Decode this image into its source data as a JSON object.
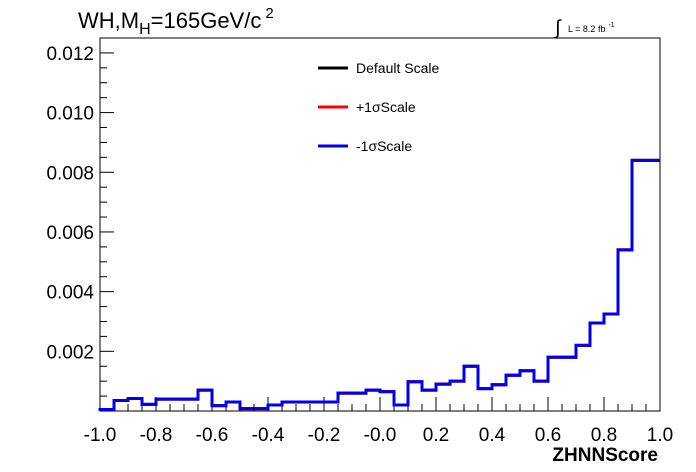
{
  "chart_data": {
    "type": "line",
    "title_main": "WH,M",
    "title_sub": "H",
    "title_rest": "=165GeV/c",
    "title_sup": "2",
    "lumi_integral": "∫",
    "lumi_text": "L = 8.2 fb",
    "lumi_sup": "-1",
    "xlabel": "ZHNNScore",
    "ylabel": "",
    "xlim": [
      -1.0,
      1.0
    ],
    "ylim": [
      0.0,
      0.0125
    ],
    "x_ticks": [
      "-1.0",
      "-0.8",
      "-0.6",
      "-0.4",
      "-0.2",
      "-0.0",
      "0.2",
      "0.4",
      "0.6",
      "0.8",
      "1.0"
    ],
    "y_ticks": [
      "0.002",
      "0.004",
      "0.006",
      "0.008",
      "0.010",
      "0.012"
    ],
    "y_tick_values": [
      0.002,
      0.004,
      0.006,
      0.008,
      0.01,
      0.012
    ],
    "bin_edges": [
      -1.0,
      -0.95,
      -0.9,
      -0.85,
      -0.8,
      -0.75,
      -0.7,
      -0.65,
      -0.6,
      -0.55,
      -0.5,
      -0.45,
      -0.4,
      -0.35,
      -0.3,
      -0.25,
      -0.2,
      -0.15,
      -0.1,
      -0.05,
      0.0,
      0.05,
      0.1,
      0.15,
      0.2,
      0.25,
      0.3,
      0.35,
      0.4,
      0.45,
      0.5,
      0.55,
      0.6,
      0.65,
      0.7,
      0.75,
      0.8,
      0.85,
      0.9,
      0.95,
      1.0
    ],
    "series": [
      {
        "name": "Default Scale",
        "color": "#000000",
        "values": [
          5e-05,
          0.00035,
          0.00042,
          0.00022,
          0.0004,
          0.0004,
          0.0004,
          0.0007,
          0.00018,
          0.0003,
          8e-05,
          8e-05,
          0.0002,
          0.0003,
          0.0003,
          0.0003,
          0.0003,
          0.0006,
          0.0006,
          0.0007,
          0.00065,
          0.0002,
          0.00098,
          0.0007,
          0.0009,
          0.001,
          0.0015,
          0.00075,
          0.00088,
          0.0012,
          0.00135,
          0.001,
          0.0018,
          0.0018,
          0.0022,
          0.00295,
          0.00325,
          0.0054,
          0.0084,
          0.0084
        ]
      },
      {
        "name": "+1σScale",
        "color": "#ff0000",
        "values": [
          5e-05,
          0.00035,
          0.00042,
          0.00022,
          0.0004,
          0.0004,
          0.0004,
          0.0007,
          0.00018,
          0.0003,
          8e-05,
          8e-05,
          0.0002,
          0.0003,
          0.0003,
          0.0003,
          0.0003,
          0.0006,
          0.0006,
          0.0007,
          0.00065,
          0.0002,
          0.00098,
          0.0007,
          0.0009,
          0.001,
          0.0015,
          0.00075,
          0.00088,
          0.0012,
          0.00135,
          0.001,
          0.0018,
          0.0018,
          0.0022,
          0.00295,
          0.00325,
          0.0054,
          0.0084,
          0.0084
        ]
      },
      {
        "name": "-1σScale",
        "color": "#0000ee",
        "values": [
          5e-05,
          0.00035,
          0.00042,
          0.00022,
          0.0004,
          0.0004,
          0.0004,
          0.0007,
          0.00018,
          0.0003,
          8e-05,
          8e-05,
          0.0002,
          0.0003,
          0.0003,
          0.0003,
          0.0003,
          0.0006,
          0.0006,
          0.0007,
          0.00065,
          0.0002,
          0.00098,
          0.0007,
          0.0009,
          0.001,
          0.0015,
          0.00075,
          0.00088,
          0.0012,
          0.00135,
          0.001,
          0.0018,
          0.0018,
          0.0022,
          0.00295,
          0.00325,
          0.0054,
          0.0084,
          0.0084
        ]
      }
    ],
    "legend": [
      {
        "label": "Default Scale",
        "color": "#000000"
      },
      {
        "label": "+1σScale",
        "color": "#ff0000"
      },
      {
        "label": "-1σScale",
        "color": "#0000ee"
      }
    ],
    "legend_position": "top-right",
    "grid": false
  }
}
